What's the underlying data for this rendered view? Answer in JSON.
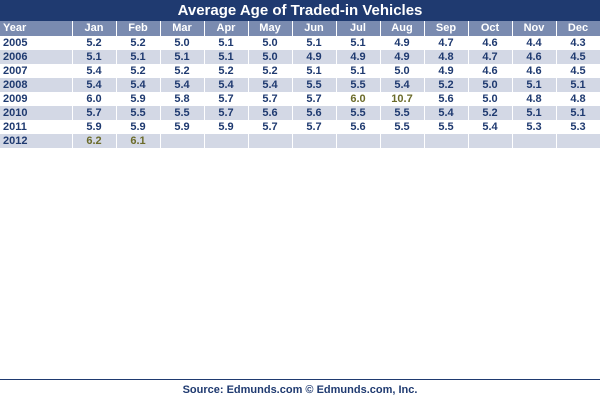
{
  "chart_data": {
    "type": "table",
    "title": "Average Age of Traded-in Vehicles",
    "row_header_label": "Year",
    "columns": [
      "Jan",
      "Feb",
      "Mar",
      "Apr",
      "May",
      "Jun",
      "Jul",
      "Aug",
      "Sep",
      "Oct",
      "Nov",
      "Dec"
    ],
    "rows": [
      {
        "year": "2005",
        "values": [
          "5.2",
          "5.2",
          "5.0",
          "5.1",
          "5.0",
          "5.1",
          "5.1",
          "4.9",
          "4.7",
          "4.6",
          "4.4",
          "4.3"
        ]
      },
      {
        "year": "2006",
        "values": [
          "5.1",
          "5.1",
          "5.1",
          "5.1",
          "5.0",
          "4.9",
          "4.9",
          "4.9",
          "4.8",
          "4.7",
          "4.6",
          "4.5"
        ]
      },
      {
        "year": "2007",
        "values": [
          "5.4",
          "5.2",
          "5.2",
          "5.2",
          "5.2",
          "5.1",
          "5.1",
          "5.0",
          "4.9",
          "4.6",
          "4.6",
          "4.5"
        ]
      },
      {
        "year": "2008",
        "values": [
          "5.4",
          "5.4",
          "5.4",
          "5.4",
          "5.4",
          "5.5",
          "5.5",
          "5.4",
          "5.2",
          "5.0",
          "5.1",
          "5.1"
        ]
      },
      {
        "year": "2009",
        "values": [
          "6.0",
          "5.9",
          "5.8",
          "5.7",
          "5.7",
          "5.7",
          "6.0",
          "10.7",
          "5.6",
          "5.0",
          "4.8",
          "4.8"
        ]
      },
      {
        "year": "2010",
        "values": [
          "5.7",
          "5.5",
          "5.5",
          "5.7",
          "5.6",
          "5.6",
          "5.5",
          "5.5",
          "5.4",
          "5.2",
          "5.1",
          "5.1"
        ]
      },
      {
        "year": "2011",
        "values": [
          "5.9",
          "5.9",
          "5.9",
          "5.9",
          "5.7",
          "5.7",
          "5.6",
          "5.5",
          "5.5",
          "5.4",
          "5.3",
          "5.3"
        ]
      },
      {
        "year": "2012",
        "values": [
          "6.2",
          "6.1",
          "",
          "",
          "",
          "",
          "",
          "",
          "",
          "",
          "",
          ""
        ]
      }
    ],
    "highlighted_cells": [
      {
        "year": "2009",
        "month": "Jul"
      },
      {
        "year": "2009",
        "month": "Aug"
      },
      {
        "year": "2012",
        "month": "Jan"
      },
      {
        "year": "2012",
        "month": "Feb"
      }
    ],
    "highlight_color": "#6b6b2a",
    "header_color": "#1f3a70",
    "column_header_color": "#7a8bb0",
    "stripe_color": "#d3d8e5"
  },
  "footer": {
    "source": "Source: Edmunds.com © Edmunds.com, Inc."
  }
}
